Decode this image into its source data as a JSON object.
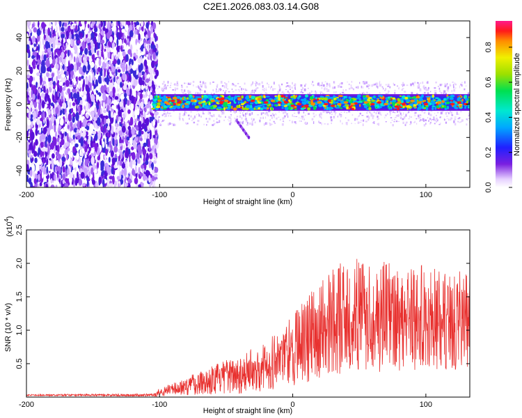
{
  "title": "C2E1.2026.083.03.14.G08",
  "chart_data": [
    {
      "type": "heatmap",
      "name": "spectrogram",
      "xlabel": "Height of straight line (km)",
      "ylabel": "Frequency (Hz)",
      "xlim": [
        -200,
        133
      ],
      "ylim": [
        -50,
        50
      ],
      "xticks": [
        -200,
        -100,
        0,
        100
      ],
      "xtick_labels": [
        "-200",
        "-100",
        "0",
        "100"
      ],
      "yticks": [
        -40,
        -20,
        0,
        20,
        40
      ],
      "ytick_labels": [
        "-40",
        "-20",
        "0",
        "20",
        "40"
      ],
      "noise_region_x": [
        -200,
        -105
      ],
      "band_start_x": -105,
      "band_center_hz": 1,
      "band_halfwidth_hz": 5,
      "band_peaks": [
        {
          "x": -100,
          "f": 2
        },
        {
          "x": -95,
          "f": 1
        },
        {
          "x": -90,
          "f": 2
        },
        {
          "x": -85,
          "f": 1
        },
        {
          "x": -75,
          "f": 2
        },
        {
          "x": -70,
          "f": 3
        },
        {
          "x": -60,
          "f": 2
        },
        {
          "x": -55,
          "f": 3
        },
        {
          "x": -50,
          "f": 2
        },
        {
          "x": -40,
          "f": 3
        },
        {
          "x": -30,
          "f": 2
        },
        {
          "x": -25,
          "f": 3
        },
        {
          "x": -20,
          "f": 1
        },
        {
          "x": -15,
          "f": 2
        },
        {
          "x": -10,
          "f": 1
        },
        {
          "x": -5,
          "f": 1
        },
        {
          "x": 0,
          "f": -1
        },
        {
          "x": 5,
          "f": 0
        },
        {
          "x": 10,
          "f": -1
        },
        {
          "x": 15,
          "f": 0
        },
        {
          "x": 20,
          "f": 1
        },
        {
          "x": 25,
          "f": 0
        },
        {
          "x": 30,
          "f": -1
        },
        {
          "x": 35,
          "f": 0
        },
        {
          "x": 40,
          "f": 1
        },
        {
          "x": 45,
          "f": 0
        },
        {
          "x": 55,
          "f": 1
        },
        {
          "x": 60,
          "f": 0
        },
        {
          "x": 65,
          "f": 1
        },
        {
          "x": 70,
          "f": 0
        },
        {
          "x": 80,
          "f": 1
        },
        {
          "x": 90,
          "f": 2
        },
        {
          "x": 95,
          "f": 1
        },
        {
          "x": 100,
          "f": 0
        },
        {
          "x": 110,
          "f": 1
        },
        {
          "x": 120,
          "f": 0
        },
        {
          "x": 125,
          "f": 1
        },
        {
          "x": 130,
          "f": 0
        }
      ],
      "artifact": {
        "x": [
          -42,
          -33
        ],
        "f": [
          -10,
          -20
        ]
      },
      "colorbar": {
        "label": "Normalized spectral amplitude",
        "range": [
          0,
          0.95
        ],
        "ticks": [
          0.0,
          0.2,
          0.4,
          0.6,
          0.8
        ],
        "tick_labels": [
          "0.0",
          "0.2",
          "0.4",
          "0.6",
          "0.8"
        ]
      }
    },
    {
      "type": "line",
      "name": "snr",
      "xlabel": "Height of straight line (km)",
      "ylabel": "SNR (10 * v/v)",
      "scale_label": "(x10",
      "scale_exponent": "4",
      "xlim": [
        -200,
        133
      ],
      "ylim": [
        0,
        2.5
      ],
      "xticks": [
        -200,
        -100,
        0,
        100
      ],
      "xtick_labels": [
        "-200",
        "-100",
        "0",
        "100"
      ],
      "yticks": [
        0.5,
        1.0,
        1.5,
        2.0,
        2.5
      ],
      "ytick_labels": [
        "0.5",
        "1.0",
        "1.5",
        "2.0",
        "2.5"
      ],
      "line_color": "#e8302e",
      "envelope": {
        "x": [
          -200,
          -105,
          -100,
          -90,
          -80,
          -70,
          -60,
          -50,
          -40,
          -30,
          -20,
          -10,
          0,
          10,
          20,
          30,
          40,
          50,
          60,
          70,
          80,
          90,
          100,
          110,
          120,
          133
        ],
        "mid": [
          0.03,
          0.03,
          0.07,
          0.12,
          0.16,
          0.22,
          0.26,
          0.3,
          0.35,
          0.4,
          0.48,
          0.58,
          0.72,
          0.85,
          1.0,
          1.15,
          1.2,
          1.22,
          1.22,
          1.2,
          1.2,
          1.2,
          1.2,
          1.15,
          1.15,
          1.15
        ],
        "amp": [
          0.01,
          0.02,
          0.06,
          0.1,
          0.14,
          0.18,
          0.22,
          0.25,
          0.3,
          0.33,
          0.38,
          0.45,
          0.55,
          0.65,
          0.75,
          0.82,
          0.85,
          0.85,
          0.85,
          0.82,
          0.82,
          0.8,
          0.8,
          0.75,
          0.75,
          0.7
        ]
      }
    }
  ]
}
